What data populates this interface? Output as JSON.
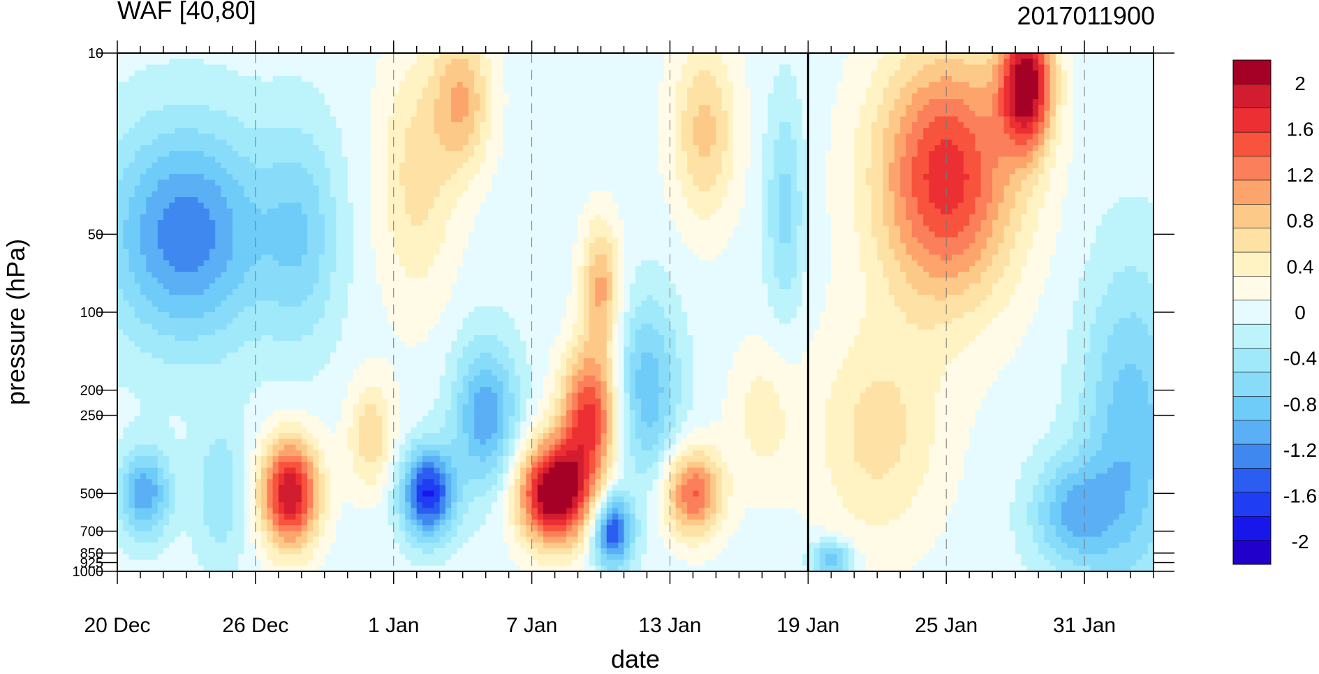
{
  "chart_data": {
    "type": "heatmap",
    "title_left": "WAF [40,80]",
    "title_right": "2017011900",
    "xlabel": "date",
    "ylabel": "pressure (hPa)",
    "x_tick_labels": [
      "20 Dec",
      "26 Dec",
      "1 Jan",
      "7 Jan",
      "13 Jan",
      "19 Jan",
      "25 Jan",
      "31 Jan"
    ],
    "x_tick_day_offsets": [
      0,
      6,
      12,
      18,
      24,
      30,
      36,
      42
    ],
    "x_range_days": [
      0,
      45
    ],
    "marker_day": 30,
    "y_levels_hPa": [
      10,
      50,
      100,
      200,
      250,
      500,
      700,
      850,
      925,
      1000
    ],
    "y_tick_labels": [
      "10",
      "50",
      "100",
      "200",
      "250",
      "500",
      "700",
      "850",
      "925",
      "1000"
    ],
    "y_scale": "log",
    "y_range_hPa": [
      10,
      1000
    ],
    "colorbar": {
      "tick_labels": [
        "2",
        "1.6",
        "1.2",
        "0.8",
        "0.4",
        "0",
        "-0.4",
        "-0.8",
        "-1.2",
        "-1.6",
        "-2"
      ],
      "tick_values": [
        2,
        1.6,
        1.2,
        0.8,
        0.4,
        0,
        -0.4,
        -0.8,
        -1.2,
        -1.6,
        -2
      ],
      "colors_top_to_bottom": [
        "#a50026",
        "#d21c2f",
        "#ec2f33",
        "#f7533d",
        "#fa7f5a",
        "#fca46c",
        "#fdc989",
        "#fee1a4",
        "#fff3c4",
        "#fffbe6",
        "#e6fbff",
        "#bdf3fb",
        "#9fe9fb",
        "#89dcf9",
        "#6fcbf7",
        "#5aaff5",
        "#3f88f0",
        "#2b5ef0",
        "#1f3df2",
        "#1717ec",
        "#2200cc"
      ]
    },
    "features": [
      {
        "day": 7.5,
        "p": 500,
        "value": 2.0,
        "sx": 0.9,
        "sy": 0.15
      },
      {
        "day": 19,
        "p": 500,
        "value": 2.4,
        "sx": 1.1,
        "sy": 0.14
      },
      {
        "day": 20.5,
        "p": 250,
        "value": 1.6,
        "sx": 0.9,
        "sy": 0.18
      },
      {
        "day": 21,
        "p": 80,
        "value": 1.0,
        "sx": 0.6,
        "sy": 0.18
      },
      {
        "day": 25,
        "p": 500,
        "value": 1.4,
        "sx": 0.9,
        "sy": 0.12
      },
      {
        "day": 36,
        "p": 30,
        "value": 1.7,
        "sx": 2.2,
        "sy": 0.35
      },
      {
        "day": 39.5,
        "p": 13,
        "value": 2.1,
        "sx": 0.8,
        "sy": 0.18
      },
      {
        "day": 13,
        "p": 30,
        "value": 0.6,
        "sx": 1.2,
        "sy": 0.35
      },
      {
        "day": 15,
        "p": 15,
        "value": 0.9,
        "sx": 0.9,
        "sy": 0.2
      },
      {
        "day": 25.5,
        "p": 20,
        "value": 0.8,
        "sx": 1.0,
        "sy": 0.25
      },
      {
        "day": 33,
        "p": 300,
        "value": 0.6,
        "sx": 2.0,
        "sy": 0.3
      },
      {
        "day": 11,
        "p": 300,
        "value": 0.7,
        "sx": 0.7,
        "sy": 0.15
      },
      {
        "day": 28,
        "p": 250,
        "value": 0.4,
        "sx": 1.0,
        "sy": 0.2
      },
      {
        "day": 3,
        "p": 50,
        "value": -1.3,
        "sx": 2.5,
        "sy": 0.3
      },
      {
        "day": 13.5,
        "p": 500,
        "value": -1.8,
        "sx": 0.8,
        "sy": 0.12
      },
      {
        "day": 16,
        "p": 250,
        "value": -1.1,
        "sx": 1.0,
        "sy": 0.2
      },
      {
        "day": 21.5,
        "p": 700,
        "value": -1.6,
        "sx": 0.6,
        "sy": 0.1
      },
      {
        "day": 23,
        "p": 200,
        "value": -0.9,
        "sx": 1.0,
        "sy": 0.25
      },
      {
        "day": 1.2,
        "p": 500,
        "value": -1.1,
        "sx": 0.8,
        "sy": 0.12
      },
      {
        "day": 44,
        "p": 300,
        "value": -0.9,
        "sx": 1.5,
        "sy": 0.45
      },
      {
        "day": 41.5,
        "p": 600,
        "value": -0.9,
        "sx": 1.3,
        "sy": 0.15
      },
      {
        "day": 29,
        "p": 40,
        "value": -0.6,
        "sx": 0.6,
        "sy": 0.3
      },
      {
        "day": 31,
        "p": 900,
        "value": -1.0,
        "sx": 0.6,
        "sy": 0.05
      },
      {
        "day": 8,
        "p": 50,
        "value": -0.6,
        "sx": 1.2,
        "sy": 0.3
      },
      {
        "day": 4.5,
        "p": 500,
        "value": -0.5,
        "sx": 0.8,
        "sy": 0.2
      }
    ]
  }
}
